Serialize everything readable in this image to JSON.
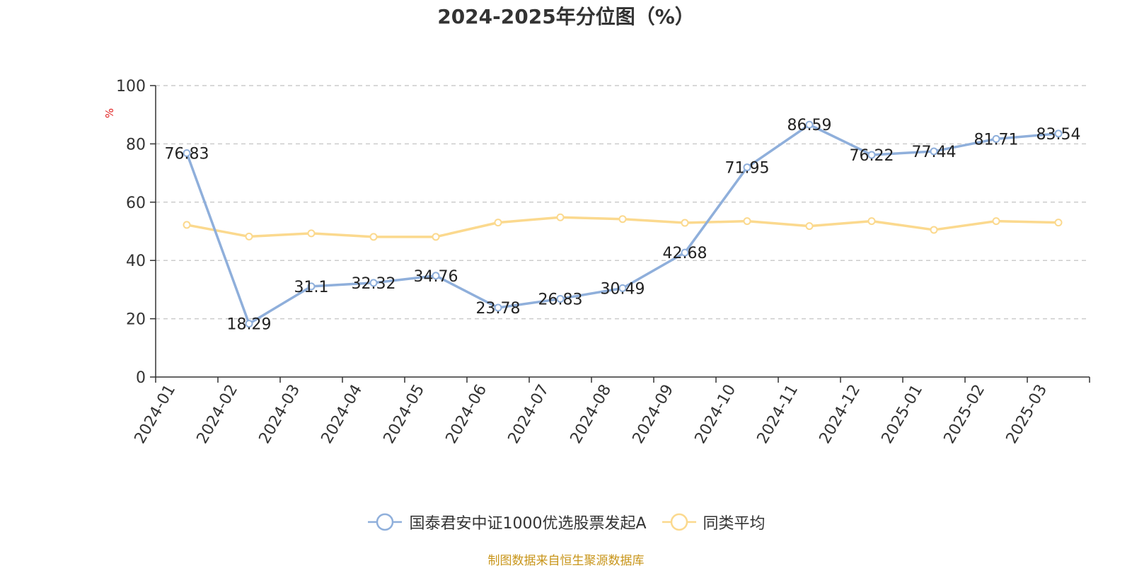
{
  "chart_data": {
    "type": "line",
    "title": "2024-2025年分位图（%）",
    "ylabel": "%",
    "xlabel": "",
    "ylim": [
      0,
      100
    ],
    "yticks": [
      0,
      20,
      40,
      60,
      80,
      100
    ],
    "grid": true,
    "legend_position": "bottom",
    "categories": [
      "2024-01",
      "2024-02",
      "2024-03",
      "2024-04",
      "2024-05",
      "2024-06",
      "2024-07",
      "2024-08",
      "2024-09",
      "2024-10",
      "2024-11",
      "2024-12",
      "2025-01",
      "2025-02",
      "2025-03"
    ],
    "series": [
      {
        "name": "国泰君安中证1000优选股票发起A",
        "color": "#8fafdb",
        "values": [
          76.83,
          18.29,
          31.1,
          32.32,
          34.76,
          23.78,
          26.83,
          30.49,
          42.68,
          71.95,
          86.59,
          76.22,
          77.44,
          81.71,
          83.54
        ],
        "labels": [
          "76.83",
          "18.29",
          "31.1",
          "32.32",
          "34.76",
          "23.78",
          "26.83",
          "30.49",
          "42.68",
          "71.95",
          "86.59",
          "76.22",
          "77.44",
          "81.71",
          "83.54"
        ],
        "show_labels": true
      },
      {
        "name": "同类平均",
        "color": "#fbd98e",
        "values": [
          52.2,
          48.2,
          49.3,
          48.1,
          48.1,
          53.0,
          54.8,
          54.2,
          52.9,
          53.5,
          51.8,
          53.5,
          50.5,
          53.5,
          53.0
        ],
        "show_labels": false
      }
    ]
  },
  "source": "制图数据来自恒生聚源数据库"
}
